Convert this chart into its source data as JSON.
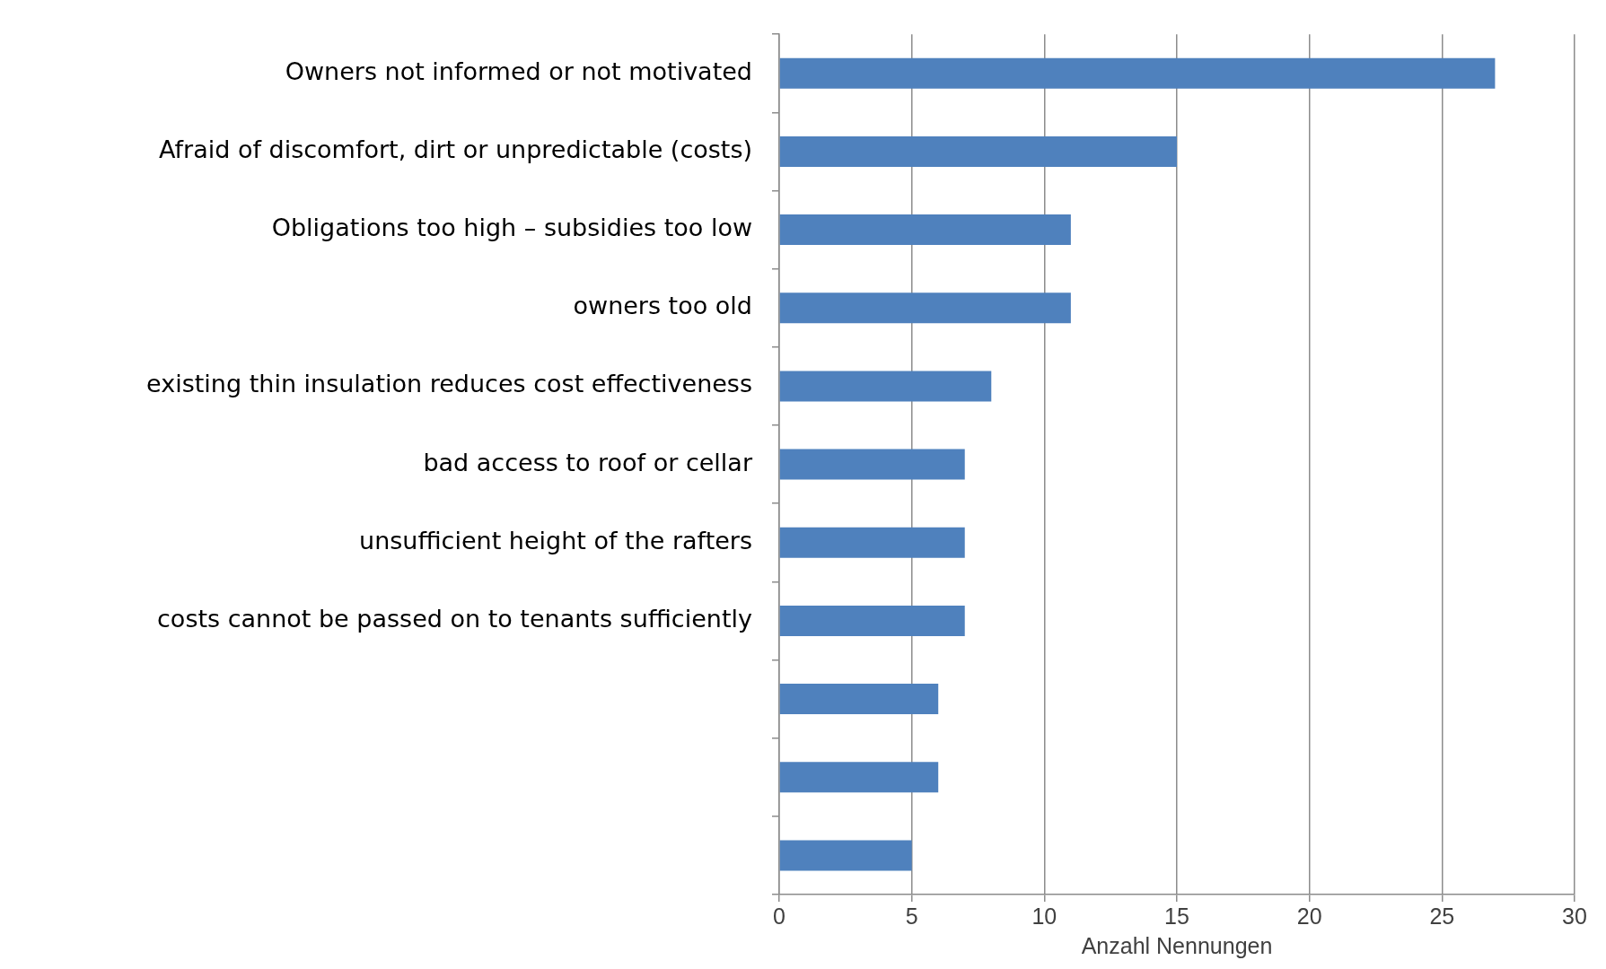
{
  "chart_data": {
    "type": "bar",
    "orientation": "horizontal",
    "xlabel": "Anzahl Nennungen",
    "categories": [
      "Owners not informed or not motivated",
      "Afraid of discomfort, dirt or unpredictable (costs)",
      "Obligations too high – subsidies too low",
      "owners too old",
      "existing thin insulation reduces cost effectiveness",
      "bad access to roof or cellar",
      "unsufficient height of the rafters",
      "costs cannot be passed on to tenants sufficiently",
      null,
      null,
      null
    ],
    "values": [
      27,
      15,
      11,
      11,
      8,
      7,
      7,
      7,
      6,
      6,
      5
    ],
    "color": "#4f81bd",
    "xlim": [
      0,
      30
    ],
    "xticks": [
      0,
      5,
      10,
      15,
      20,
      25,
      30
    ],
    "grid": "x",
    "legend": false
  }
}
